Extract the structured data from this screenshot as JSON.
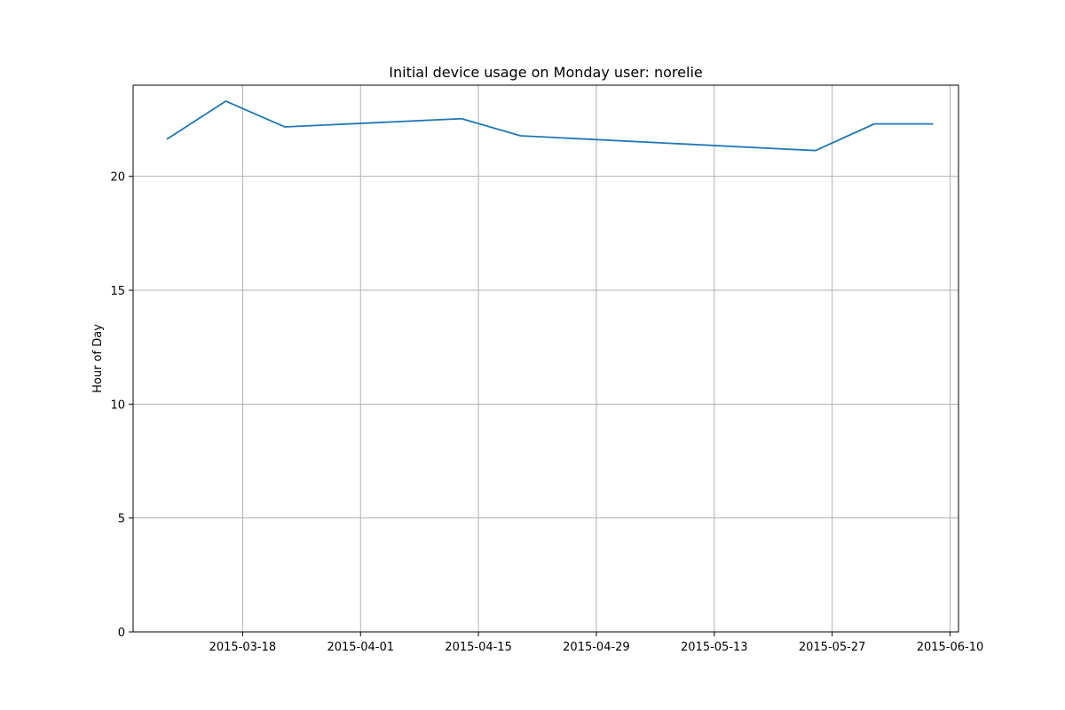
{
  "chart_data": {
    "type": "line",
    "title": "Initial device usage on Monday user: norelie",
    "xlabel": "",
    "ylabel": "Hour of Day",
    "x_is_date": true,
    "x": [
      "2015-03-09",
      "2015-03-16",
      "2015-03-23",
      "2015-04-13",
      "2015-04-20",
      "2015-05-25",
      "2015-06-01",
      "2015-06-08"
    ],
    "series": [
      {
        "color": "#1f77b4",
        "values": [
          21.63,
          23.3,
          22.17,
          22.53,
          21.78,
          21.13,
          22.3,
          22.3
        ]
      }
    ],
    "xlim": [
      "2015-03-05",
      "2015-06-11"
    ],
    "ylim": [
      0,
      24
    ],
    "xticks": [
      "2015-03-18",
      "2015-04-01",
      "2015-04-15",
      "2015-04-29",
      "2015-05-13",
      "2015-05-27",
      "2015-06-10"
    ],
    "yticks": [
      0,
      5,
      10,
      15,
      20
    ],
    "grid": true
  }
}
